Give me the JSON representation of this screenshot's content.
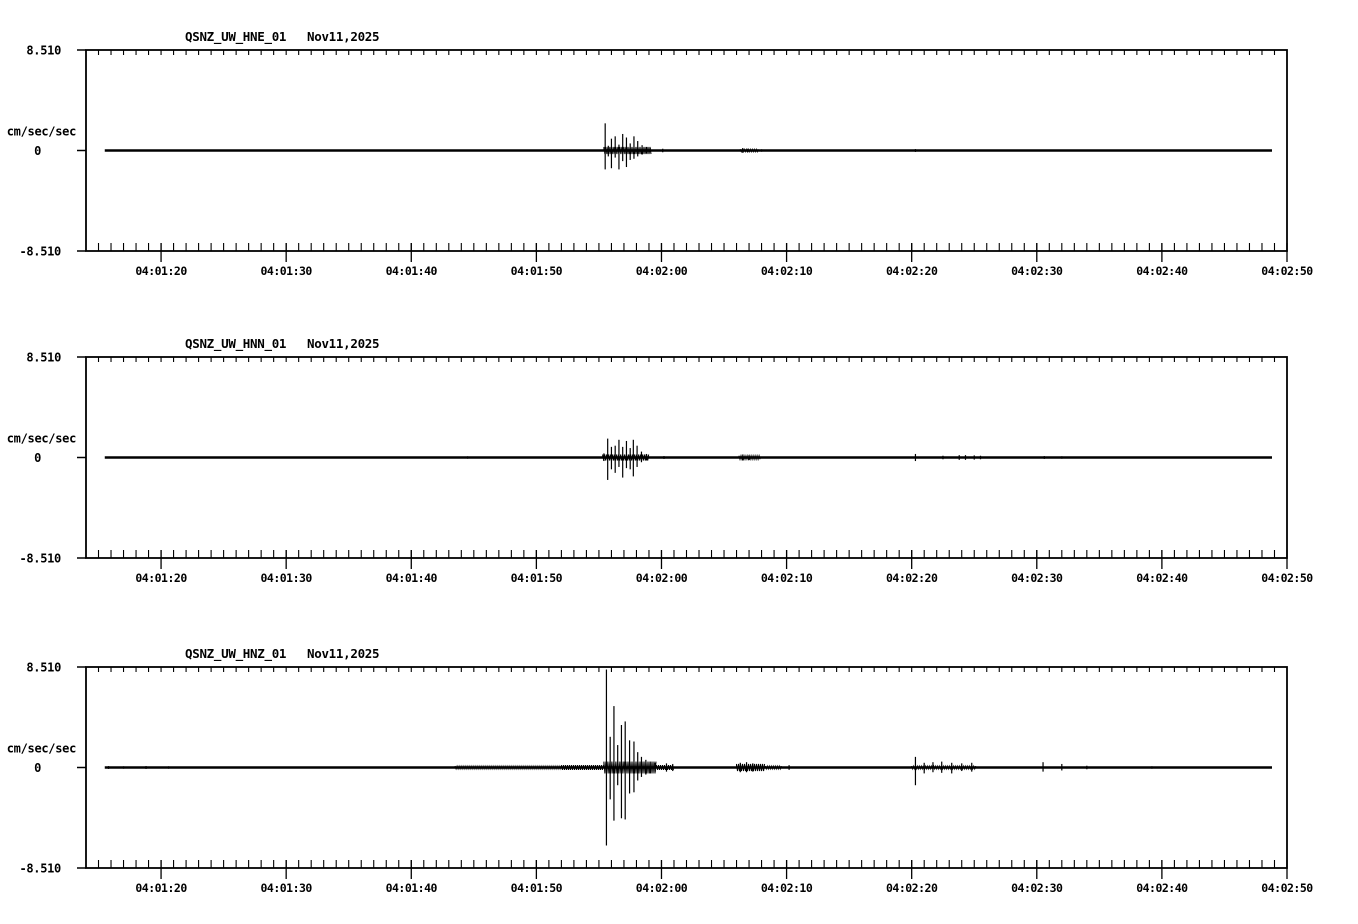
{
  "page": {
    "background": "#ffffff",
    "ink": "#000000"
  },
  "chart_data": [
    {
      "type": "line",
      "station": "QSNZ_UW_HNE_01",
      "date": "Nov11,2025",
      "ylabel": "cm/sec/sec",
      "ylim": [
        -8.51,
        8.51
      ],
      "yticks": [
        {
          "label": "8.510",
          "value": 8.51
        },
        {
          "label": "0",
          "value": 0
        },
        {
          "label": "-8.510",
          "value": -8.51
        }
      ],
      "x_axis_start_seconds": 74,
      "x_axis_end_seconds": 170,
      "minor_tick_seconds": 1,
      "xticks": [
        {
          "label": "04:01:20",
          "t": 80
        },
        {
          "label": "04:01:30",
          "t": 90
        },
        {
          "label": "04:01:40",
          "t": 100
        },
        {
          "label": "04:01:50",
          "t": 110
        },
        {
          "label": "04:02:00",
          "t": 120
        },
        {
          "label": "04:02:10",
          "t": 130
        },
        {
          "label": "04:02:20",
          "t": 140
        },
        {
          "label": "04:02:30",
          "t": 150
        },
        {
          "label": "04:02:40",
          "t": 160
        },
        {
          "label": "04:02:50",
          "t": 170
        }
      ],
      "trace": {
        "flat_start": 75.5,
        "flat_end": 168.8,
        "spikes": [
          [
            77.4,
            0.08,
            0.08
          ],
          [
            104.5,
            0.08,
            0.08
          ],
          [
            108.7,
            0.08,
            0.08
          ],
          [
            115.5,
            2.3,
            1.6
          ],
          [
            115.75,
            0.4,
            0.5
          ],
          [
            116.0,
            1.0,
            1.5
          ],
          [
            116.3,
            1.2,
            0.6
          ],
          [
            116.6,
            0.5,
            1.6
          ],
          [
            116.9,
            1.4,
            0.9
          ],
          [
            117.2,
            1.1,
            1.4
          ],
          [
            117.5,
            0.6,
            0.8
          ],
          [
            117.8,
            1.2,
            0.7
          ],
          [
            118.1,
            0.8,
            0.5
          ],
          [
            118.45,
            0.45,
            0.35
          ],
          [
            118.8,
            0.3,
            0.25
          ],
          [
            119.1,
            0.2,
            0.15
          ],
          [
            120.1,
            0.15,
            0.15
          ],
          [
            126.5,
            0.2,
            0.2
          ],
          [
            126.9,
            0.15,
            0.15
          ],
          [
            128.0,
            0.1,
            0.1
          ],
          [
            140.3,
            0.12,
            0.12
          ]
        ],
        "noise": [
          [
            115.4,
            119.2,
            0.3
          ],
          [
            126.3,
            127.8,
            0.1
          ]
        ]
      }
    },
    {
      "type": "line",
      "station": "QSNZ_UW_HNN_01",
      "date": "Nov11,2025",
      "ylabel": "cm/sec/sec",
      "ylim": [
        -8.51,
        8.51
      ],
      "yticks": [
        {
          "label": "8.510",
          "value": 8.51
        },
        {
          "label": "0",
          "value": 0
        },
        {
          "label": "-8.510",
          "value": -8.51
        }
      ],
      "x_axis_start_seconds": 74,
      "x_axis_end_seconds": 170,
      "minor_tick_seconds": 1,
      "xticks": [
        {
          "label": "04:01:20",
          "t": 80
        },
        {
          "label": "04:01:30",
          "t": 90
        },
        {
          "label": "04:01:40",
          "t": 100
        },
        {
          "label": "04:01:50",
          "t": 110
        },
        {
          "label": "04:02:00",
          "t": 120
        },
        {
          "label": "04:02:10",
          "t": 130
        },
        {
          "label": "04:02:20",
          "t": 140
        },
        {
          "label": "04:02:30",
          "t": 150
        },
        {
          "label": "04:02:40",
          "t": 160
        },
        {
          "label": "04:02:50",
          "t": 170
        }
      ],
      "trace": {
        "flat_start": 75.5,
        "flat_end": 168.8,
        "spikes": [
          [
            77.4,
            0.08,
            0.08
          ],
          [
            104.5,
            0.1,
            0.1
          ],
          [
            115.4,
            0.35,
            0.3
          ],
          [
            115.7,
            1.6,
            1.9
          ],
          [
            116.0,
            0.9,
            1.0
          ],
          [
            116.3,
            1.0,
            1.3
          ],
          [
            116.6,
            1.5,
            0.8
          ],
          [
            116.9,
            0.9,
            1.7
          ],
          [
            117.2,
            1.4,
            0.9
          ],
          [
            117.5,
            0.8,
            1.0
          ],
          [
            117.75,
            1.5,
            1.6
          ],
          [
            118.05,
            1.0,
            0.8
          ],
          [
            118.4,
            0.5,
            0.4
          ],
          [
            118.8,
            0.3,
            0.25
          ],
          [
            120.2,
            0.12,
            0.12
          ],
          [
            126.5,
            0.25,
            0.25
          ],
          [
            127.0,
            0.2,
            0.2
          ],
          [
            140.3,
            0.3,
            0.3
          ],
          [
            142.5,
            0.15,
            0.15
          ],
          [
            143.8,
            0.2,
            0.2
          ],
          [
            144.3,
            0.2,
            0.2
          ],
          [
            145.0,
            0.18,
            0.18
          ],
          [
            145.5,
            0.15,
            0.15
          ],
          [
            150.6,
            0.12,
            0.12
          ],
          [
            152.0,
            0.1,
            0.1
          ]
        ],
        "noise": [
          [
            115.3,
            119.0,
            0.25
          ],
          [
            126.2,
            127.9,
            0.15
          ]
        ]
      }
    },
    {
      "type": "line",
      "station": "QSNZ_UW_HNZ_01",
      "date": "Nov11,2025",
      "ylabel": "cm/sec/sec",
      "ylim": [
        -8.51,
        8.51
      ],
      "yticks": [
        {
          "label": "8.510",
          "value": 8.51
        },
        {
          "label": "0",
          "value": 0
        },
        {
          "label": "-8.510",
          "value": -8.51
        }
      ],
      "x_axis_start_seconds": 74,
      "x_axis_end_seconds": 170,
      "minor_tick_seconds": 1,
      "xticks": [
        {
          "label": "04:01:20",
          "t": 80
        },
        {
          "label": "04:01:30",
          "t": 90
        },
        {
          "label": "04:01:40",
          "t": 100
        },
        {
          "label": "04:01:50",
          "t": 110
        },
        {
          "label": "04:02:00",
          "t": 120
        },
        {
          "label": "04:02:10",
          "t": 130
        },
        {
          "label": "04:02:20",
          "t": 140
        },
        {
          "label": "04:02:30",
          "t": 150
        },
        {
          "label": "04:02:40",
          "t": 160
        },
        {
          "label": "04:02:50",
          "t": 170
        }
      ],
      "trace": {
        "flat_start": 75.5,
        "flat_end": 168.8,
        "spikes": [
          [
            75.8,
            0.12,
            0.12
          ],
          [
            77.0,
            0.1,
            0.1
          ],
          [
            78.8,
            0.12,
            0.12
          ],
          [
            80.6,
            0.1,
            0.1
          ],
          [
            96.0,
            0.08,
            0.08
          ],
          [
            115.6,
            8.3,
            6.6
          ],
          [
            115.9,
            2.6,
            2.7
          ],
          [
            116.2,
            5.2,
            4.5
          ],
          [
            116.5,
            1.9,
            1.5
          ],
          [
            116.8,
            3.6,
            4.3
          ],
          [
            117.1,
            3.9,
            4.4
          ],
          [
            117.45,
            2.3,
            2.2
          ],
          [
            117.8,
            2.2,
            2.1
          ],
          [
            118.1,
            1.3,
            1.1
          ],
          [
            118.4,
            0.9,
            0.8
          ],
          [
            118.75,
            0.65,
            0.6
          ],
          [
            119.1,
            0.5,
            0.5
          ],
          [
            119.5,
            0.4,
            0.35
          ],
          [
            120.4,
            0.35,
            0.35
          ],
          [
            120.9,
            0.3,
            0.3
          ],
          [
            126.3,
            0.4,
            0.4
          ],
          [
            126.8,
            0.45,
            0.4
          ],
          [
            127.3,
            0.35,
            0.35
          ],
          [
            130.2,
            0.2,
            0.2
          ],
          [
            140.3,
            0.9,
            1.5
          ],
          [
            141.0,
            0.4,
            0.5
          ],
          [
            141.7,
            0.45,
            0.4
          ],
          [
            142.4,
            0.5,
            0.45
          ],
          [
            143.2,
            0.4,
            0.5
          ],
          [
            144.0,
            0.35,
            0.3
          ],
          [
            144.8,
            0.4,
            0.35
          ],
          [
            150.5,
            0.45,
            0.35
          ],
          [
            152.0,
            0.3,
            0.25
          ],
          [
            154.0,
            0.15,
            0.15
          ],
          [
            159.2,
            0.1,
            0.1
          ]
        ],
        "noise": [
          [
            103.5,
            112.0,
            0.12
          ],
          [
            112.0,
            115.4,
            0.2
          ],
          [
            115.4,
            119.6,
            0.5
          ],
          [
            119.6,
            121.0,
            0.2
          ],
          [
            126.0,
            128.3,
            0.3
          ],
          [
            128.3,
            129.6,
            0.12
          ],
          [
            140.0,
            145.2,
            0.12
          ]
        ]
      }
    }
  ]
}
